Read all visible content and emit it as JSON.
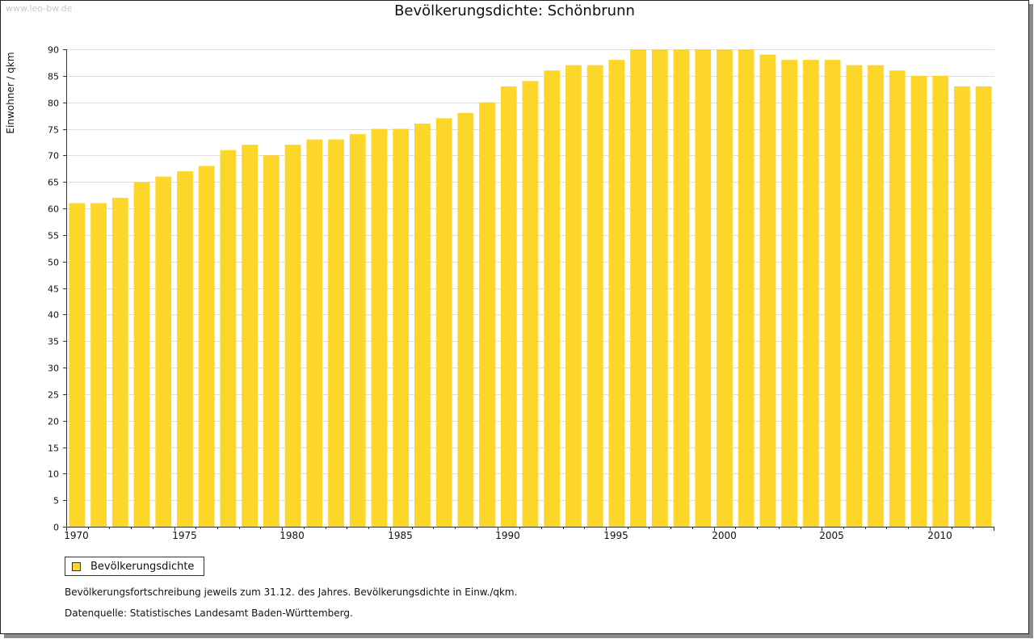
{
  "watermark": "www.leo-bw.de",
  "legend_label": "Bevölkerungsdichte",
  "notes": {
    "line1": "Bevölkerungsfortschreibung jeweils zum 31.12. des Jahres. Bevölkerungsdichte in Einw./qkm.",
    "line2": "Datenquelle: Statistisches Landesamt Baden-Württemberg."
  },
  "colors": {
    "bar": "#fcd628",
    "grid": "#dddddd",
    "axis": "#333333"
  },
  "chart_data": {
    "type": "bar",
    "title": "Bevölkerungsdichte: Schönbrunn",
    "xlabel": "",
    "ylabel": "Einwohner / qkm",
    "ylim": [
      0,
      90
    ],
    "ytick_step": 5,
    "xtick_labels": [
      "1970",
      "1975",
      "1980",
      "1985",
      "1990",
      "1995",
      "2000",
      "2005",
      "2010"
    ],
    "grid": true,
    "legend_position": "bottom-left",
    "series": [
      {
        "name": "Bevölkerungsdichte",
        "categories": [
          1970,
          1971,
          1972,
          1973,
          1974,
          1975,
          1976,
          1977,
          1978,
          1979,
          1980,
          1981,
          1982,
          1983,
          1984,
          1985,
          1986,
          1987,
          1988,
          1989,
          1990,
          1991,
          1992,
          1993,
          1994,
          1995,
          1996,
          1997,
          1998,
          1999,
          2000,
          2001,
          2002,
          2003,
          2004,
          2005,
          2006,
          2007,
          2008,
          2009,
          2010,
          2011,
          2012
        ],
        "values": [
          61,
          61,
          62,
          65,
          66,
          67,
          68,
          71,
          72,
          70,
          72,
          73,
          73,
          74,
          75,
          75,
          76,
          77,
          78,
          80,
          83,
          84,
          86,
          87,
          87,
          88,
          90,
          90,
          90,
          90,
          90,
          90,
          89,
          88,
          88,
          88,
          87,
          87,
          86,
          85,
          85,
          83,
          83
        ]
      }
    ]
  }
}
